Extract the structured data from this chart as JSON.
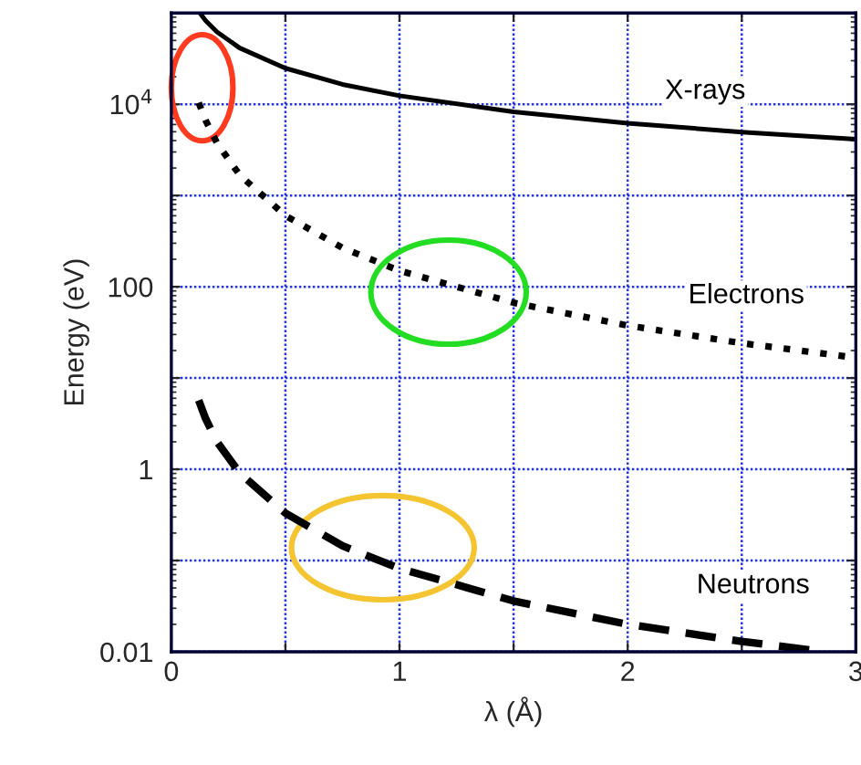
{
  "chart_data": {
    "type": "line",
    "xlabel": "λ (Å)",
    "ylabel": "Energy (eV)",
    "series": [
      {
        "name": "X-rays",
        "color": "#000000",
        "line_style": "solid",
        "x": [
          0.125,
          0.15,
          0.2,
          0.3,
          0.5,
          0.75,
          1,
          1.5,
          2,
          2.5,
          3
        ],
        "values": [
          100000,
          82700,
          62000,
          41300,
          24800,
          16500,
          12400,
          8270,
          6200,
          4960,
          4130
        ]
      },
      {
        "name": "Electrons",
        "color": "#000000",
        "line_style": "dotted",
        "x": [
          0.12,
          0.15,
          0.2,
          0.3,
          0.5,
          0.75,
          1,
          1.5,
          2,
          2.5,
          3
        ],
        "values": [
          10400,
          6690,
          3760,
          1670,
          602,
          267,
          150,
          66.8,
          37.6,
          24.1,
          16.7
        ]
      },
      {
        "name": "Neutrons",
        "color": "#000000",
        "line_style": "dashed",
        "x": [
          0.12,
          0.15,
          0.2,
          0.3,
          0.5,
          0.75,
          1,
          1.5,
          2,
          2.5,
          2.86
        ],
        "values": [
          5.7,
          3.6,
          2.0,
          0.91,
          0.33,
          0.145,
          0.082,
          0.036,
          0.02,
          0.013,
          0.01
        ]
      }
    ],
    "log": "y",
    "xlim": [
      0,
      3
    ],
    "ylim": [
      0.01,
      100000
    ],
    "xticks": [
      0,
      {
        "value": 0.5,
        "label": null
      },
      1,
      {
        "value": 1.5,
        "label": null
      },
      2,
      {
        "value": 2.5,
        "label": null
      },
      3
    ],
    "yticks": [
      0.01,
      {
        "value": 0.1,
        "label": null
      },
      1,
      {
        "value": 10,
        "label": null
      },
      100,
      {
        "value": 1000,
        "label": null
      },
      {
        "value": 10000,
        "label": "10$^{4}$"
      },
      {
        "value": 100000,
        "label": null
      }
    ],
    "grid": true,
    "legend": false,
    "marker": "none"
  }
}
